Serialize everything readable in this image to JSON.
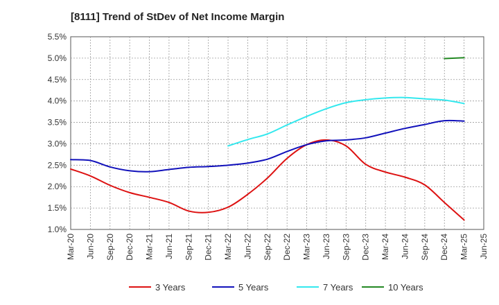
{
  "chart_data": {
    "type": "line",
    "title": "[8111]  Trend of StDev of Net Income Margin",
    "xlabel": "",
    "ylabel": "",
    "ylim": [
      1.0,
      5.5
    ],
    "y_ticks": [
      "1.0%",
      "1.5%",
      "2.0%",
      "2.5%",
      "3.0%",
      "3.5%",
      "4.0%",
      "4.5%",
      "5.0%",
      "5.5%"
    ],
    "x_ticks": [
      "Mar-20",
      "Jun-20",
      "Sep-20",
      "Dec-20",
      "Mar-21",
      "Jun-21",
      "Sep-21",
      "Dec-21",
      "Mar-22",
      "Jun-22",
      "Sep-22",
      "Dec-22",
      "Mar-23",
      "Jun-23",
      "Sep-23",
      "Dec-23",
      "Mar-24",
      "Jun-24",
      "Sep-24",
      "Dec-24",
      "Mar-25",
      "Jun-25"
    ],
    "grid": true,
    "legend_position": "bottom",
    "series": [
      {
        "name": "3 Years",
        "color": "#dd1111",
        "x": [
          "Mar-20",
          "Jun-20",
          "Sep-20",
          "Dec-20",
          "Mar-21",
          "Jun-21",
          "Sep-21",
          "Dec-21",
          "Mar-22",
          "Jun-22",
          "Sep-22",
          "Dec-22",
          "Mar-23",
          "Jun-23",
          "Sep-23",
          "Dec-23",
          "Mar-24",
          "Jun-24",
          "Sep-24",
          "Dec-24",
          "Mar-25"
        ],
        "values": [
          2.41,
          2.25,
          2.03,
          1.86,
          1.75,
          1.63,
          1.43,
          1.4,
          1.52,
          1.82,
          2.2,
          2.66,
          2.98,
          3.09,
          2.95,
          2.52,
          2.34,
          2.22,
          2.04,
          1.63,
          1.22
        ]
      },
      {
        "name": "5 Years",
        "color": "#1111bb",
        "x": [
          "Mar-20",
          "Jun-20",
          "Sep-20",
          "Dec-20",
          "Mar-21",
          "Jun-21",
          "Sep-21",
          "Dec-21",
          "Mar-22",
          "Jun-22",
          "Sep-22",
          "Dec-22",
          "Mar-23",
          "Jun-23",
          "Sep-23",
          "Dec-23",
          "Mar-24",
          "Jun-24",
          "Sep-24",
          "Dec-24",
          "Mar-25"
        ],
        "values": [
          2.63,
          2.61,
          2.46,
          2.37,
          2.35,
          2.4,
          2.45,
          2.47,
          2.5,
          2.55,
          2.64,
          2.82,
          2.98,
          3.07,
          3.09,
          3.14,
          3.25,
          3.36,
          3.45,
          3.54,
          3.53
        ]
      },
      {
        "name": "7 Years",
        "color": "#33e8ee",
        "x": [
          "Mar-22",
          "Jun-22",
          "Sep-22",
          "Dec-22",
          "Mar-23",
          "Jun-23",
          "Sep-23",
          "Dec-23",
          "Mar-24",
          "Jun-24",
          "Sep-24",
          "Dec-24",
          "Mar-25"
        ],
        "values": [
          2.95,
          3.1,
          3.23,
          3.44,
          3.64,
          3.82,
          3.96,
          4.03,
          4.07,
          4.08,
          4.05,
          4.02,
          3.94
        ]
      },
      {
        "name": "10 Years",
        "color": "#228822",
        "x": [
          "Dec-24",
          "Mar-25"
        ],
        "values": [
          4.99,
          5.01
        ]
      }
    ]
  }
}
